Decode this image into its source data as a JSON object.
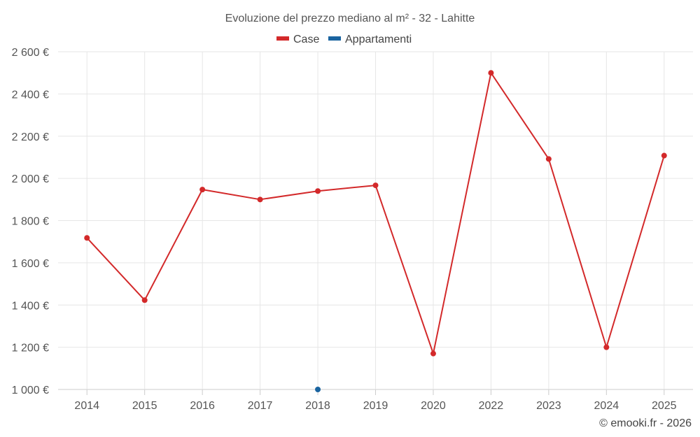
{
  "chart_data": {
    "type": "line",
    "title": "Evoluzione del prezzo mediano al m² - 32 - Lahitte",
    "categories": [
      "2014",
      "2015",
      "2016",
      "2017",
      "2018",
      "2019",
      "2020",
      "2022",
      "2023",
      "2024",
      "2025"
    ],
    "ylim": [
      1000,
      2600
    ],
    "yticks": [
      1000,
      1200,
      1400,
      1600,
      1800,
      2000,
      2200,
      2400,
      2600
    ],
    "ytick_labels": [
      "1 000 €",
      "1 200 €",
      "1 400 €",
      "1 600 €",
      "1 800 €",
      "2 000 €",
      "2 200 €",
      "2 400 €",
      "2 600 €"
    ],
    "grid": true,
    "legend_position": "top-center",
    "series": [
      {
        "name": "Case",
        "color": "#d3292a",
        "values": [
          1718,
          1423,
          1947,
          1900,
          1940,
          1967,
          1170,
          2500,
          2092,
          1200,
          2108
        ]
      },
      {
        "name": "Appartamenti",
        "color": "#1a64a0",
        "values": [
          null,
          null,
          null,
          null,
          1000,
          null,
          null,
          null,
          null,
          null,
          null
        ]
      }
    ]
  },
  "credit": "© emooki.fr - 2026"
}
